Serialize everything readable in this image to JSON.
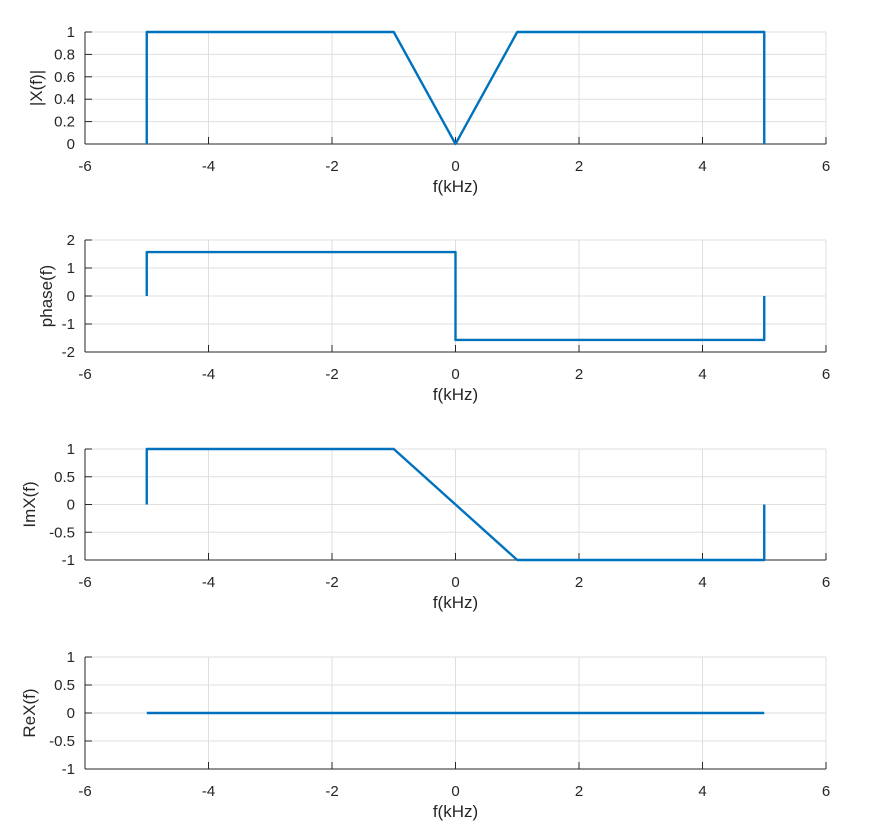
{
  "chart_data": [
    {
      "type": "line",
      "xlabel": "f(kHz)",
      "ylabel": "|X(f)|",
      "xlim": [
        -6,
        6
      ],
      "ylim": [
        0,
        1
      ],
      "xticks": [
        -6,
        -4,
        -2,
        0,
        2,
        4,
        6
      ],
      "yticks": [
        0,
        0.2,
        0.4,
        0.6,
        0.8,
        1
      ],
      "grid": true,
      "series": [
        {
          "color": "#0072BD",
          "x": [
            -5,
            -5,
            -1,
            0,
            1,
            5,
            5
          ],
          "y": [
            0,
            1,
            1,
            0,
            1,
            1,
            0
          ]
        }
      ]
    },
    {
      "type": "line",
      "xlabel": "f(kHz)",
      "ylabel": "phase(f)",
      "xlim": [
        -6,
        6
      ],
      "ylim": [
        -2,
        2
      ],
      "xticks": [
        -6,
        -4,
        -2,
        0,
        2,
        4,
        6
      ],
      "yticks": [
        -2,
        -1,
        0,
        1,
        2
      ],
      "grid": true,
      "series": [
        {
          "color": "#0072BD",
          "x": [
            -5,
            -5,
            0,
            0,
            5,
            5
          ],
          "y": [
            0,
            1.5708,
            1.5708,
            -1.5708,
            -1.5708,
            0
          ]
        }
      ]
    },
    {
      "type": "line",
      "xlabel": "f(kHz)",
      "ylabel": "ImX(f)",
      "xlim": [
        -6,
        6
      ],
      "ylim": [
        -1,
        1
      ],
      "xticks": [
        -6,
        -4,
        -2,
        0,
        2,
        4,
        6
      ],
      "yticks": [
        -1,
        -0.5,
        0,
        0.5,
        1
      ],
      "grid": true,
      "series": [
        {
          "color": "#0072BD",
          "x": [
            -5,
            -5,
            -1,
            1,
            5,
            5
          ],
          "y": [
            0,
            1,
            1,
            -1,
            -1,
            0
          ]
        }
      ]
    },
    {
      "type": "line",
      "xlabel": "f(kHz)",
      "ylabel": "ReX(f)",
      "xlim": [
        -6,
        6
      ],
      "ylim": [
        -1,
        1
      ],
      "xticks": [
        -6,
        -4,
        -2,
        0,
        2,
        4,
        6
      ],
      "yticks": [
        -1,
        -0.5,
        0,
        0.5,
        1
      ],
      "grid": true,
      "series": [
        {
          "color": "#0072BD",
          "x": [
            -5,
            5
          ],
          "y": [
            0,
            0
          ]
        }
      ]
    }
  ]
}
